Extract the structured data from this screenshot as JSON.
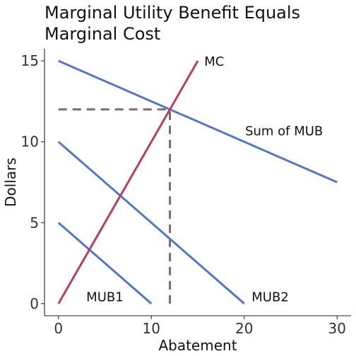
{
  "chart_data": {
    "type": "line",
    "title_lines": [
      "Marginal Utility Benefit Equals",
      "Marginal Cost"
    ],
    "xlabel": "Abatement",
    "ylabel": "Dollars",
    "xlim": [
      -1.5,
      31.5
    ],
    "ylim": [
      -0.75,
      15.75
    ],
    "x_ticks": [
      0,
      10,
      20,
      30
    ],
    "y_ticks": [
      0,
      5,
      10,
      15
    ],
    "grid": false,
    "series": [
      {
        "name": "MUB1",
        "color": "#5577C2",
        "x": [
          0,
          10
        ],
        "y": [
          5,
          0
        ]
      },
      {
        "name": "MUB2",
        "color": "#5577C2",
        "x": [
          0,
          20
        ],
        "y": [
          10,
          0
        ]
      },
      {
        "name": "Sum of MUB",
        "color": "#5577C2",
        "x": [
          0,
          30
        ],
        "y": [
          15,
          7.5
        ]
      },
      {
        "name": "MC",
        "color": "#B8405E",
        "x": [
          0,
          15
        ],
        "y": [
          0,
          15
        ]
      }
    ],
    "reference_lines": {
      "color": "#707070",
      "style": "dashed",
      "horizontal": {
        "y": 12,
        "x_from": 0,
        "x_to": 12
      },
      "vertical": {
        "x": 12,
        "y_from": 0,
        "y_to": 12
      }
    },
    "annotations": [
      {
        "text": "MC",
        "x": 15.7,
        "y": 15
      },
      {
        "text": "Sum of MUB",
        "x": 20.1,
        "y": 10.7
      },
      {
        "text": "MUB1",
        "x": 3,
        "y": 0.45
      },
      {
        "text": "MUB2",
        "x": 20.8,
        "y": 0.45
      }
    ]
  }
}
